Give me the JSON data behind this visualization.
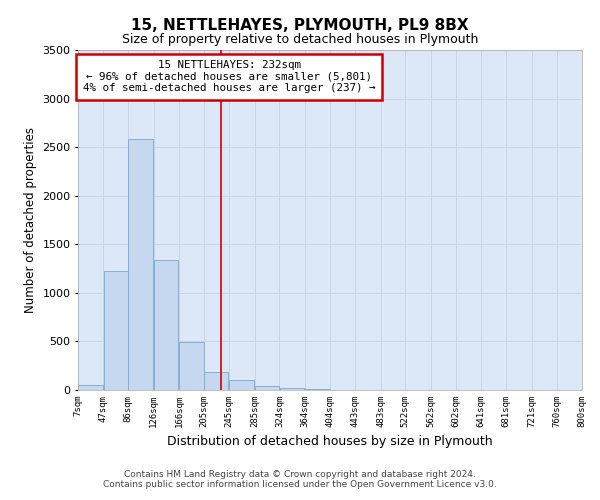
{
  "title": "15, NETTLEHAYES, PLYMOUTH, PL9 8BX",
  "subtitle": "Size of property relative to detached houses in Plymouth",
  "xlabel": "Distribution of detached houses by size in Plymouth",
  "ylabel": "Number of detached properties",
  "footer_line1": "Contains HM Land Registry data © Crown copyright and database right 2024.",
  "footer_line2": "Contains public sector information licensed under the Open Government Licence v3.0.",
  "annotation_line1": "15 NETTLEHAYES: 232sqm",
  "annotation_line2": "← 96% of detached houses are smaller (5,801)",
  "annotation_line3": "4% of semi-detached houses are larger (237) →",
  "bar_left_edges": [
    7,
    47,
    86,
    126,
    166,
    205,
    245,
    285,
    324,
    364,
    404,
    443,
    483,
    522,
    562,
    602,
    641,
    681,
    721,
    760
  ],
  "bar_heights": [
    50,
    1220,
    2580,
    1340,
    490,
    190,
    105,
    40,
    20,
    10,
    5,
    3,
    2,
    0,
    0,
    0,
    0,
    0,
    0,
    0
  ],
  "bar_color": "#c5d8f0",
  "bar_edge_color": "#7aaad0",
  "vline_color": "#cc0000",
  "vline_x": 232,
  "annotation_box_color": "#cc0000",
  "annotation_bg": "#ffffff",
  "ylim": [
    0,
    3500
  ],
  "xlim": [
    7,
    800
  ],
  "tick_labels": [
    "7sqm",
    "47sqm",
    "86sqm",
    "126sqm",
    "166sqm",
    "205sqm",
    "245sqm",
    "285sqm",
    "324sqm",
    "364sqm",
    "404sqm",
    "443sqm",
    "483sqm",
    "522sqm",
    "562sqm",
    "602sqm",
    "641sqm",
    "681sqm",
    "721sqm",
    "760sqm",
    "800sqm"
  ],
  "tick_positions": [
    7,
    47,
    86,
    126,
    166,
    205,
    245,
    285,
    324,
    364,
    404,
    443,
    483,
    522,
    562,
    602,
    641,
    681,
    721,
    760,
    800
  ],
  "grid_color": "#c8d4e8",
  "plot_bg_color": "#dce8f8",
  "fig_bg_color": "#ffffff"
}
